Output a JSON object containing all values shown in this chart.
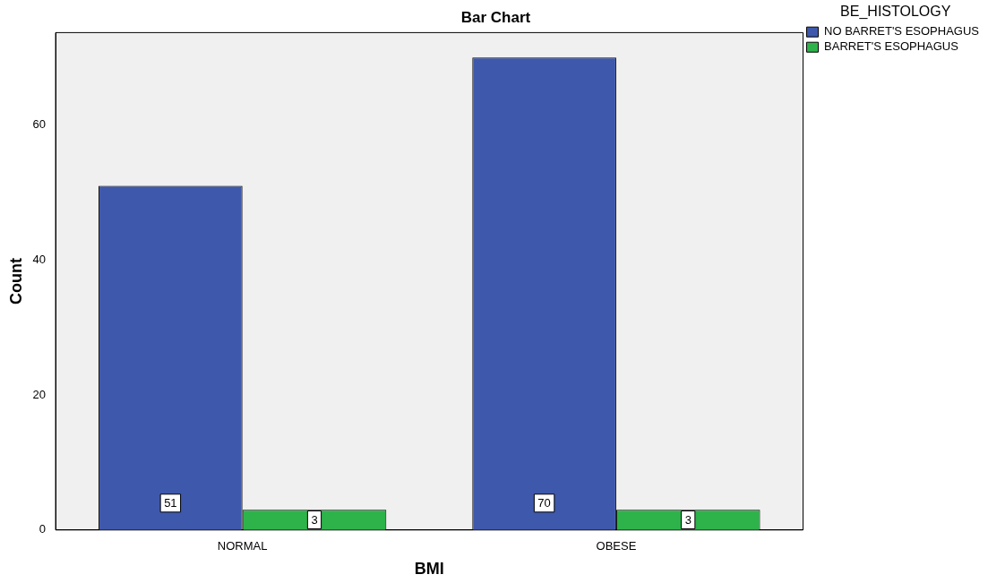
{
  "chart_data": {
    "type": "bar",
    "title": "Bar Chart",
    "xlabel": "BMI",
    "ylabel": "Count",
    "legend_title": "BE_HISTOLOGY",
    "categories": [
      "NORMAL",
      "OBESE"
    ],
    "series": [
      {
        "name": "NO BARRET'S ESOPHAGUS",
        "color": "#3e58ac",
        "values": [
          51,
          70
        ]
      },
      {
        "name": "BARRET'S ESOPHAGUS",
        "color": "#2db34a",
        "values": [
          3,
          3
        ]
      }
    ],
    "ylim": [
      0,
      73.7
    ],
    "yticks": [
      0,
      20,
      40,
      60
    ],
    "grid": false,
    "legend": "top right",
    "data_labels": true
  }
}
